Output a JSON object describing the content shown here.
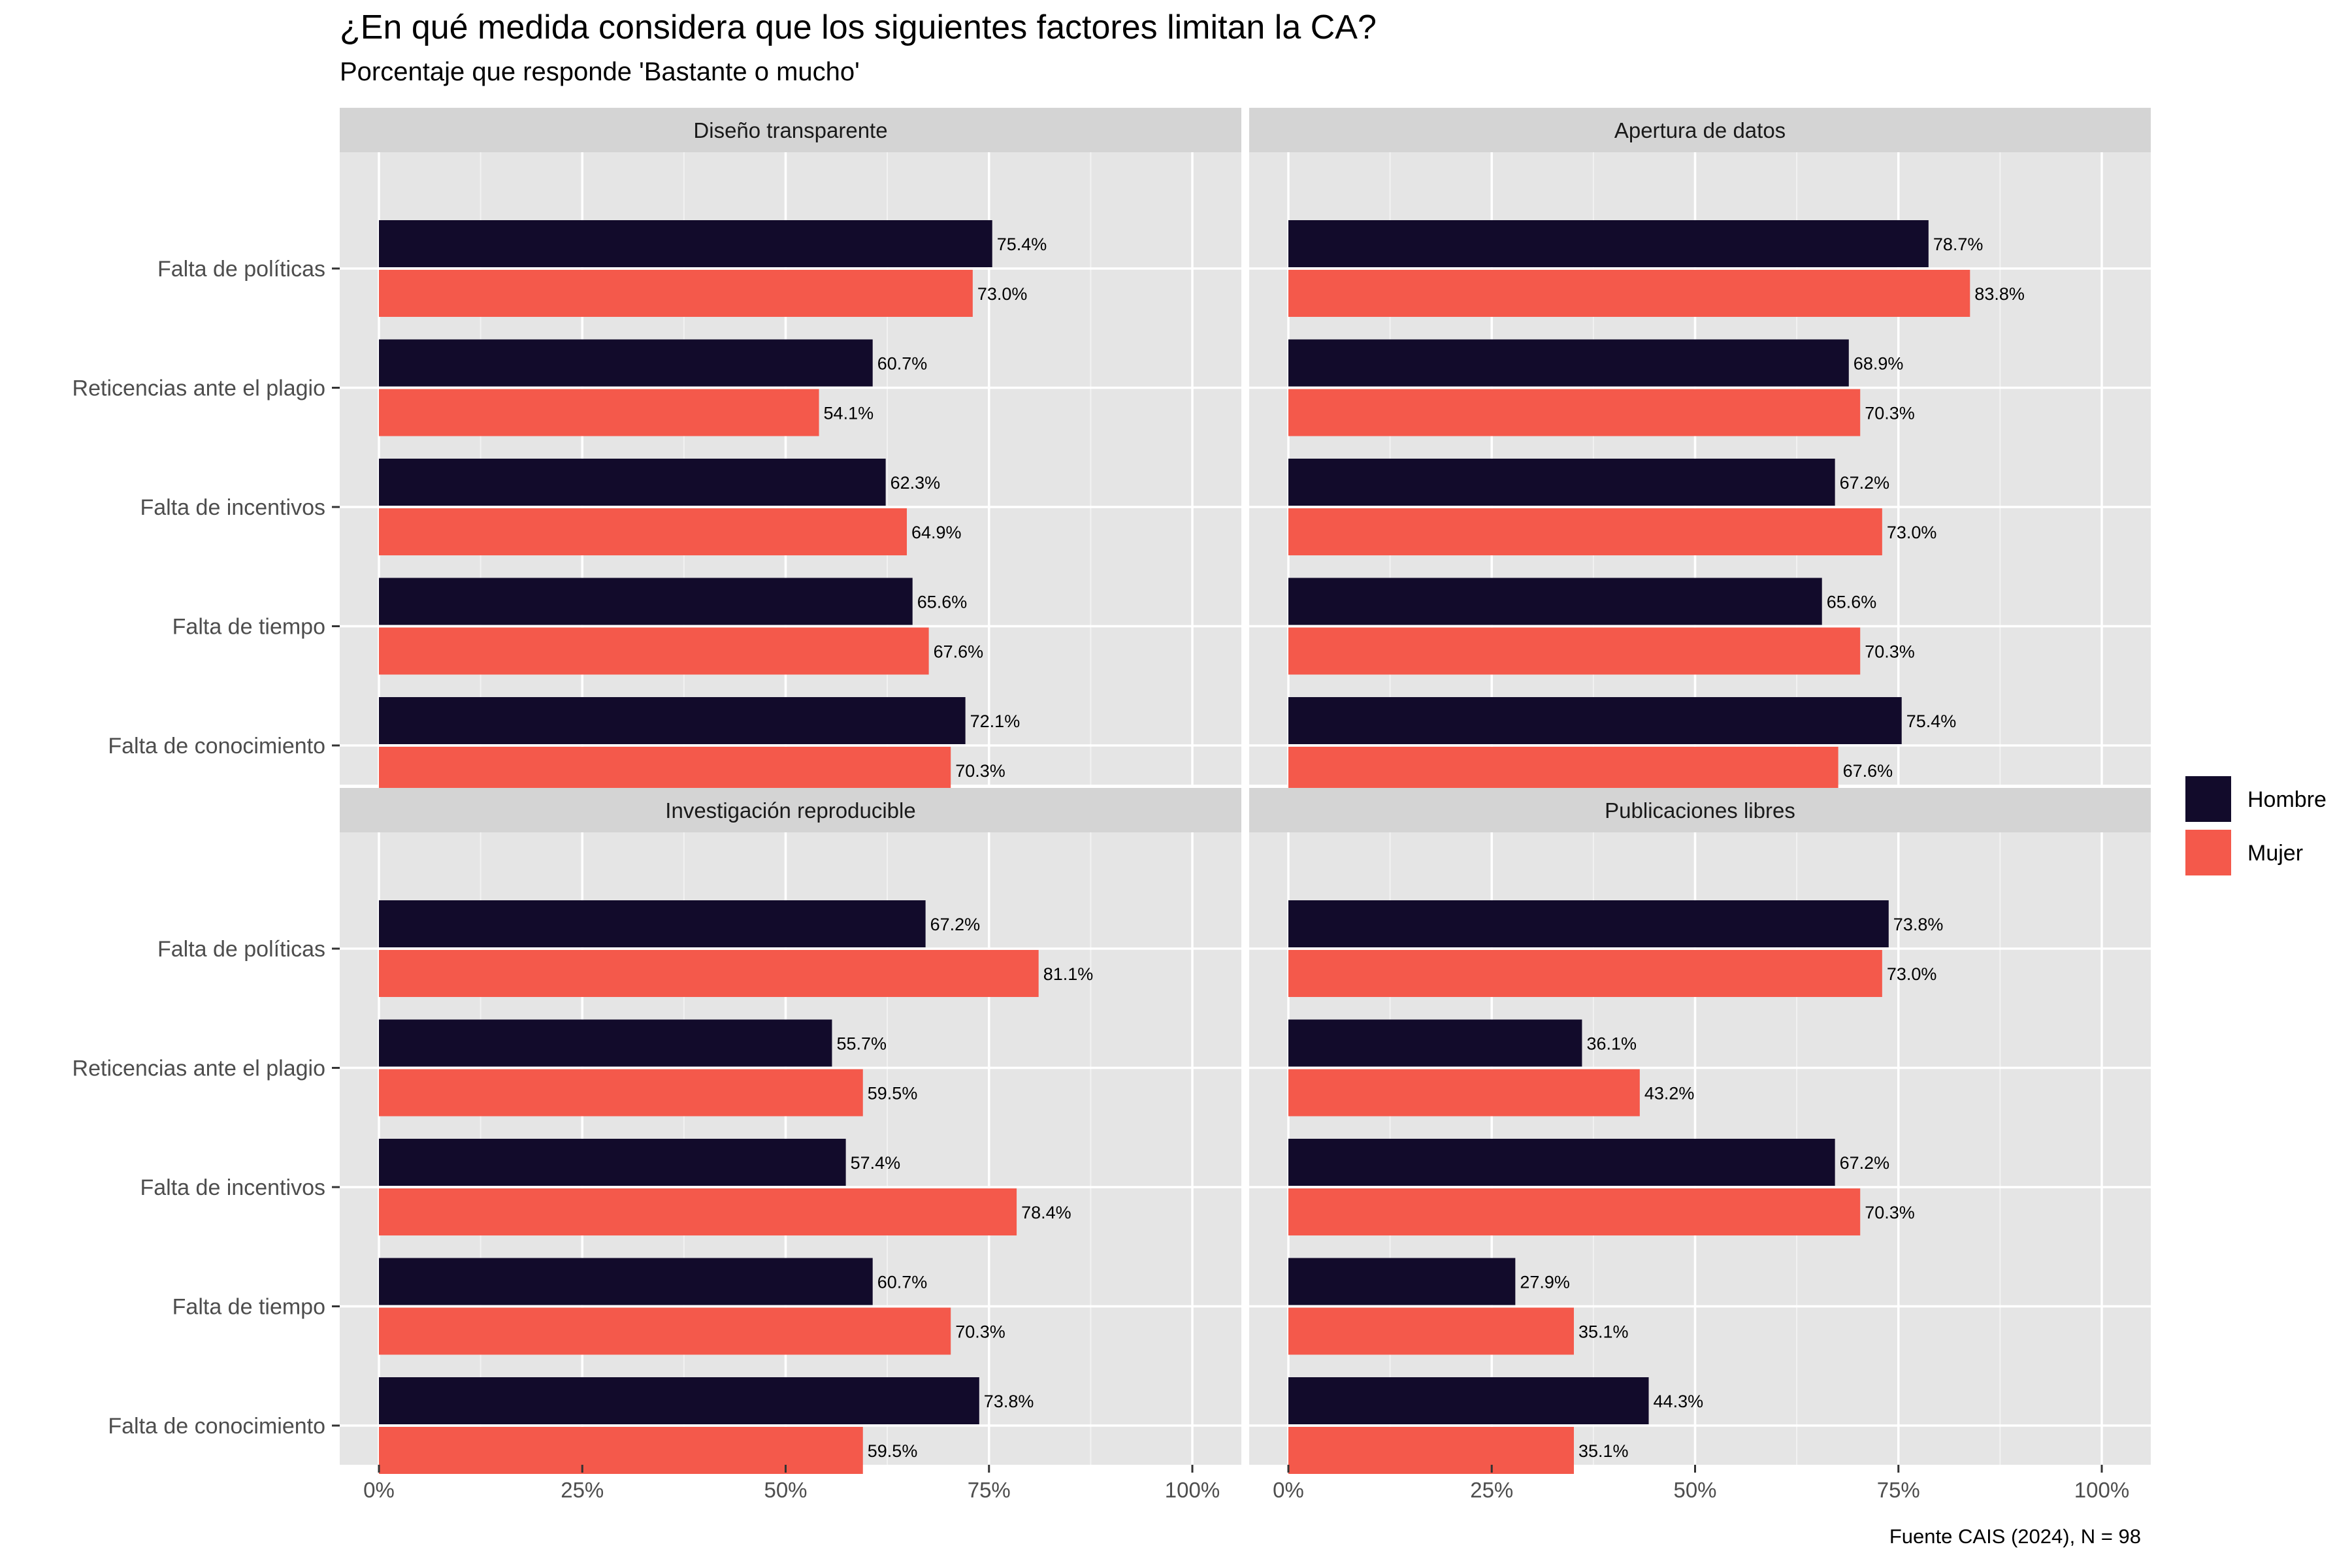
{
  "title": "¿En qué medida considera que los siguientes factores limitan la CA?",
  "subtitle": "Porcentaje que responde 'Bastante o mucho'",
  "caption": "Fuente CAIS (2024), N = 98",
  "chart_data": {
    "type": "bar",
    "orientation": "horizontal",
    "facets": [
      "Diseño transparente",
      "Apertura de datos",
      "Investigación reproducible",
      "Publicaciones libres"
    ],
    "categories": [
      "Falta de políticas",
      "Reticencias ante el plagio",
      "Falta de incentivos",
      "Falta de tiempo ",
      "Falta de conocimiento"
    ],
    "series": [
      {
        "name": "Hombre",
        "color": "#120b2b"
      },
      {
        "name": "Mujer",
        "color": "#f4594b"
      }
    ],
    "values": {
      "Diseño transparente": {
        "Hombre": [
          75.4,
          60.7,
          62.3,
          65.6,
          72.1
        ],
        "Mujer": [
          73.0,
          54.1,
          64.9,
          67.6,
          70.3
        ]
      },
      "Apertura de datos": {
        "Hombre": [
          78.7,
          68.9,
          67.2,
          65.6,
          75.4
        ],
        "Mujer": [
          83.8,
          70.3,
          73.0,
          70.3,
          67.6
        ]
      },
      "Investigación reproducible": {
        "Hombre": [
          67.2,
          55.7,
          57.4,
          60.7,
          73.8
        ],
        "Mujer": [
          81.1,
          59.5,
          78.4,
          70.3,
          59.5
        ]
      },
      "Publicaciones libres": {
        "Hombre": [
          73.8,
          36.1,
          67.2,
          27.9,
          44.3
        ],
        "Mujer": [
          73.0,
          43.2,
          70.3,
          35.1,
          35.1
        ]
      }
    },
    "x_ticks": [
      "0%",
      "25%",
      "50%",
      "75%",
      "100%"
    ],
    "xlim": [
      0,
      100
    ],
    "legend_position": "right",
    "grid": true,
    "panel_background": "#e5e5e5",
    "strip_background": "#d4d4d4"
  }
}
